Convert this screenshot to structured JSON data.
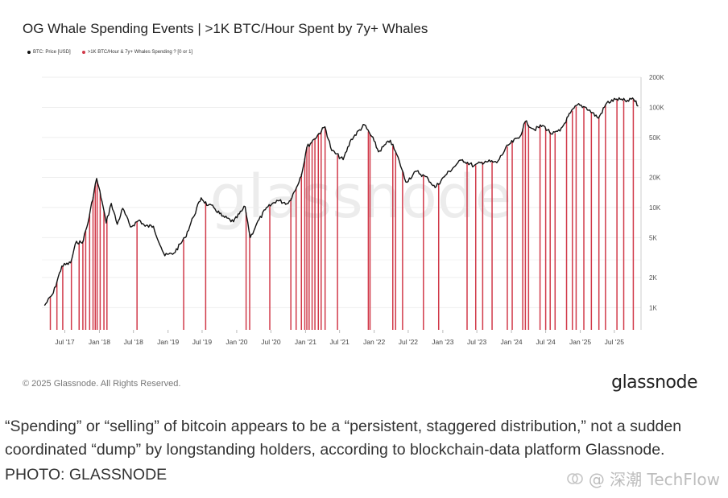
{
  "chart_data": {
    "type": "line",
    "title": "OG Whale Spending Events | >1K BTC/Hour Spent by 7y+ Whales",
    "legend_position": "top-left",
    "series": [
      {
        "name": "BTC: Price [USD]",
        "color": "#111111",
        "x": [
          "2017-03-15",
          "2017-05-01",
          "2017-06-15",
          "2017-08-01",
          "2017-09-01",
          "2017-10-01",
          "2017-11-01",
          "2017-12-17",
          "2018-01-15",
          "2018-02-06",
          "2018-03-05",
          "2018-04-06",
          "2018-05-05",
          "2018-06-15",
          "2018-08-01",
          "2018-09-01",
          "2018-10-15",
          "2018-11-25",
          "2018-12-15",
          "2019-02-01",
          "2019-04-01",
          "2019-05-15",
          "2019-06-26",
          "2019-08-01",
          "2019-09-01",
          "2019-10-15",
          "2019-12-15",
          "2020-02-15",
          "2020-03-13",
          "2020-04-15",
          "2020-06-01",
          "2020-08-01",
          "2020-10-01",
          "2020-11-15",
          "2020-12-15",
          "2021-01-08",
          "2021-02-15",
          "2021-04-14",
          "2021-05-20",
          "2021-07-20",
          "2021-09-01",
          "2021-11-10",
          "2022-01-01",
          "2022-01-24",
          "2022-03-28",
          "2022-05-15",
          "2022-06-18",
          "2022-08-15",
          "2022-10-15",
          "2022-11-21",
          "2023-01-15",
          "2023-03-15",
          "2023-04-15",
          "2023-06-15",
          "2023-08-15",
          "2023-10-15",
          "2023-12-15",
          "2024-02-15",
          "2024-03-14",
          "2024-05-01",
          "2024-06-15",
          "2024-08-05",
          "2024-09-15",
          "2024-11-10",
          "2024-12-17",
          "2025-02-01",
          "2025-04-08",
          "2025-05-22",
          "2025-07-14",
          "2025-08-14",
          "2025-09-15",
          "2025-10-06",
          "2025-11-05"
        ],
        "values": [
          1050,
          1400,
          2600,
          2800,
          4600,
          4400,
          7000,
          19500,
          11500,
          7000,
          11000,
          6800,
          9800,
          6400,
          7500,
          6500,
          6500,
          4000,
          3300,
          3500,
          5000,
          8000,
          12500,
          10500,
          10000,
          8200,
          7200,
          10200,
          5000,
          6800,
          9500,
          11800,
          11000,
          16000,
          23000,
          40000,
          48000,
          64000,
          37000,
          30000,
          48000,
          67000,
          46000,
          36000,
          47000,
          29000,
          18000,
          23000,
          19300,
          15800,
          21000,
          27000,
          30000,
          26000,
          29000,
          28000,
          42000,
          51000,
          72000,
          60000,
          66000,
          54000,
          58000,
          88000,
          106000,
          100000,
          78000,
          111000,
          121000,
          118000,
          115000,
          124000,
          103000
        ]
      },
      {
        "name": ">1K BTC/Hour & 7y+ Whales Spending ? [0 or 1]",
        "color": "#d13a4a",
        "events": [
          "2017-04-15",
          "2017-05-20",
          "2017-06-20",
          "2017-08-05",
          "2017-09-15",
          "2017-10-05",
          "2017-10-20",
          "2017-11-10",
          "2017-11-28",
          "2017-12-10",
          "2017-12-20",
          "2018-01-05",
          "2018-01-25",
          "2018-02-10",
          "2018-07-20",
          "2019-03-25",
          "2019-07-20",
          "2020-02-20",
          "2020-03-10",
          "2020-06-25",
          "2020-10-15",
          "2020-11-12",
          "2020-12-10",
          "2020-12-28",
          "2021-01-08",
          "2021-01-20",
          "2021-02-05",
          "2021-02-20",
          "2021-03-10",
          "2021-03-25",
          "2021-04-15",
          "2021-06-20",
          "2021-12-01",
          "2021-12-10",
          "2022-04-10",
          "2022-04-25",
          "2022-06-01",
          "2022-09-20",
          "2022-12-10",
          "2023-05-10",
          "2023-06-25",
          "2023-08-01",
          "2023-09-20",
          "2023-12-10",
          "2024-01-05",
          "2024-03-01",
          "2024-03-15",
          "2024-04-01",
          "2024-06-01",
          "2024-07-01",
          "2024-07-25",
          "2024-08-20",
          "2024-10-20",
          "2024-11-20",
          "2024-12-10",
          "2025-01-20",
          "2025-03-01",
          "2025-04-10",
          "2025-05-15",
          "2025-07-15",
          "2025-08-20",
          "2025-10-10"
        ]
      }
    ],
    "x_ticks": [
      "Jul '17",
      "Jan '18",
      "Jul '18",
      "Jan '19",
      "Jul '19",
      "Jan '20",
      "Jul '20",
      "Jan '21",
      "Jul '21",
      "Jan '22",
      "Jul '22",
      "Jan '23",
      "Jul '23",
      "Jan '24",
      "Jul '24",
      "Jan '25",
      "Jul '25"
    ],
    "x_tick_dates": [
      "2017-07-01",
      "2018-01-01",
      "2018-07-01",
      "2019-01-01",
      "2019-07-01",
      "2020-01-01",
      "2020-07-01",
      "2021-01-01",
      "2021-07-01",
      "2022-01-01",
      "2022-07-01",
      "2023-01-01",
      "2023-07-01",
      "2024-01-01",
      "2024-07-01",
      "2025-01-01",
      "2025-07-01"
    ],
    "xlim": [
      "2017-03-01",
      "2025-11-20"
    ],
    "y_scale": "log",
    "ylim": [
      600,
      200000
    ],
    "y_ticks": [
      1000,
      2000,
      5000,
      10000,
      20000,
      50000,
      100000,
      200000
    ],
    "y_tick_labels": [
      "1K",
      "2K",
      "5K",
      "10K",
      "20K",
      "50K",
      "100K",
      "200K"
    ],
    "grid": "horizontal"
  },
  "footer": {
    "copyright": "© 2025 Glassnode. All Rights Reserved.",
    "brand": "glassnode"
  },
  "caption": {
    "text": "“Spending” or “selling” of bitcoin appears to be a “persistent, staggered distribution,” not a sudden coordinated “dump” by longstanding holders, according to blockchain-data platform Glassnode.",
    "credit": "PHOTO: GLASSNODE"
  },
  "overlay_watermark": {
    "text": "@ 深潮 TechFlow",
    "icon": "techflow-logo-icon"
  },
  "background_watermark": "glassnode"
}
